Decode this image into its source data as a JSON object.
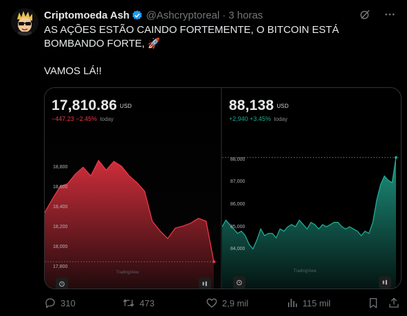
{
  "tweet": {
    "author_name": "Criptomoeda Ash",
    "handle": "@Ashcryptoreal",
    "separator": "·",
    "time": "3 horas",
    "text": "AS AÇÕES ESTÃO CAINDO FORTEMENTE, O BITCOIN ESTÁ BOMBANDO FORTE, 🚀\n\nVAMOS LÁ!!"
  },
  "icons": {
    "verified": "verified-badge-icon",
    "grok": "grok-icon",
    "more": "more-icon",
    "reply": "reply-icon",
    "retweet": "retweet-icon",
    "like": "like-icon",
    "views": "views-icon",
    "bookmark": "bookmark-icon",
    "share": "share-icon"
  },
  "colors": {
    "negative": "#f23645",
    "positive": "#22ab94",
    "verified": "#1d9bf0"
  },
  "charts": {
    "left": {
      "price": "17,810.86",
      "currency": "USD",
      "change": "−447.23 −2.45%",
      "change_suffix": "today",
      "watermark": "TradingView",
      "ticks": [
        "18,800",
        "18,600",
        "18,400",
        "18,200",
        "18,000",
        "17,800"
      ]
    },
    "right": {
      "price": "88,138",
      "currency": "USD",
      "change": "+2,940 +3.45%",
      "change_suffix": "today",
      "watermark": "TradingView",
      "ticks": [
        "88,000",
        "87,000",
        "86,000",
        "85,000",
        "84,000"
      ]
    }
  },
  "chart_data": [
    {
      "type": "area",
      "color": "#f23645",
      "y_ticks": [
        18800,
        18600,
        18400,
        18200,
        18000,
        17800
      ],
      "ylim": [
        17760,
        18900
      ],
      "values": [
        18320,
        18460,
        18590,
        18620,
        18720,
        18790,
        18700,
        18860,
        18760,
        18850,
        18800,
        18700,
        18630,
        18540,
        18230,
        18130,
        18050,
        18160,
        18180,
        18210,
        18260,
        18230,
        17810
      ],
      "reference_line": 17810
    },
    {
      "type": "area",
      "color": "#22ab94",
      "y_ticks": [
        88000,
        87000,
        86000,
        85000,
        84000
      ],
      "ylim": [
        83200,
        88300
      ],
      "values": [
        85000,
        85300,
        85100,
        84900,
        84700,
        84800,
        84600,
        84200,
        84000,
        84400,
        84900,
        84600,
        84700,
        84700,
        84500,
        84900,
        84800,
        85000,
        85100,
        85000,
        85300,
        85100,
        84900,
        85200,
        85100,
        84900,
        85100,
        85000,
        85100,
        85200,
        85200,
        85000,
        84900,
        85000,
        84900,
        84800,
        84600,
        84800,
        84700,
        85200,
        86200,
        86900,
        87300,
        87100,
        87000,
        88138
      ],
      "reference_line": 88138
    }
  ],
  "actions": {
    "replies": "310",
    "retweets": "473",
    "likes": "2,9 mil",
    "views": "115 mil"
  }
}
